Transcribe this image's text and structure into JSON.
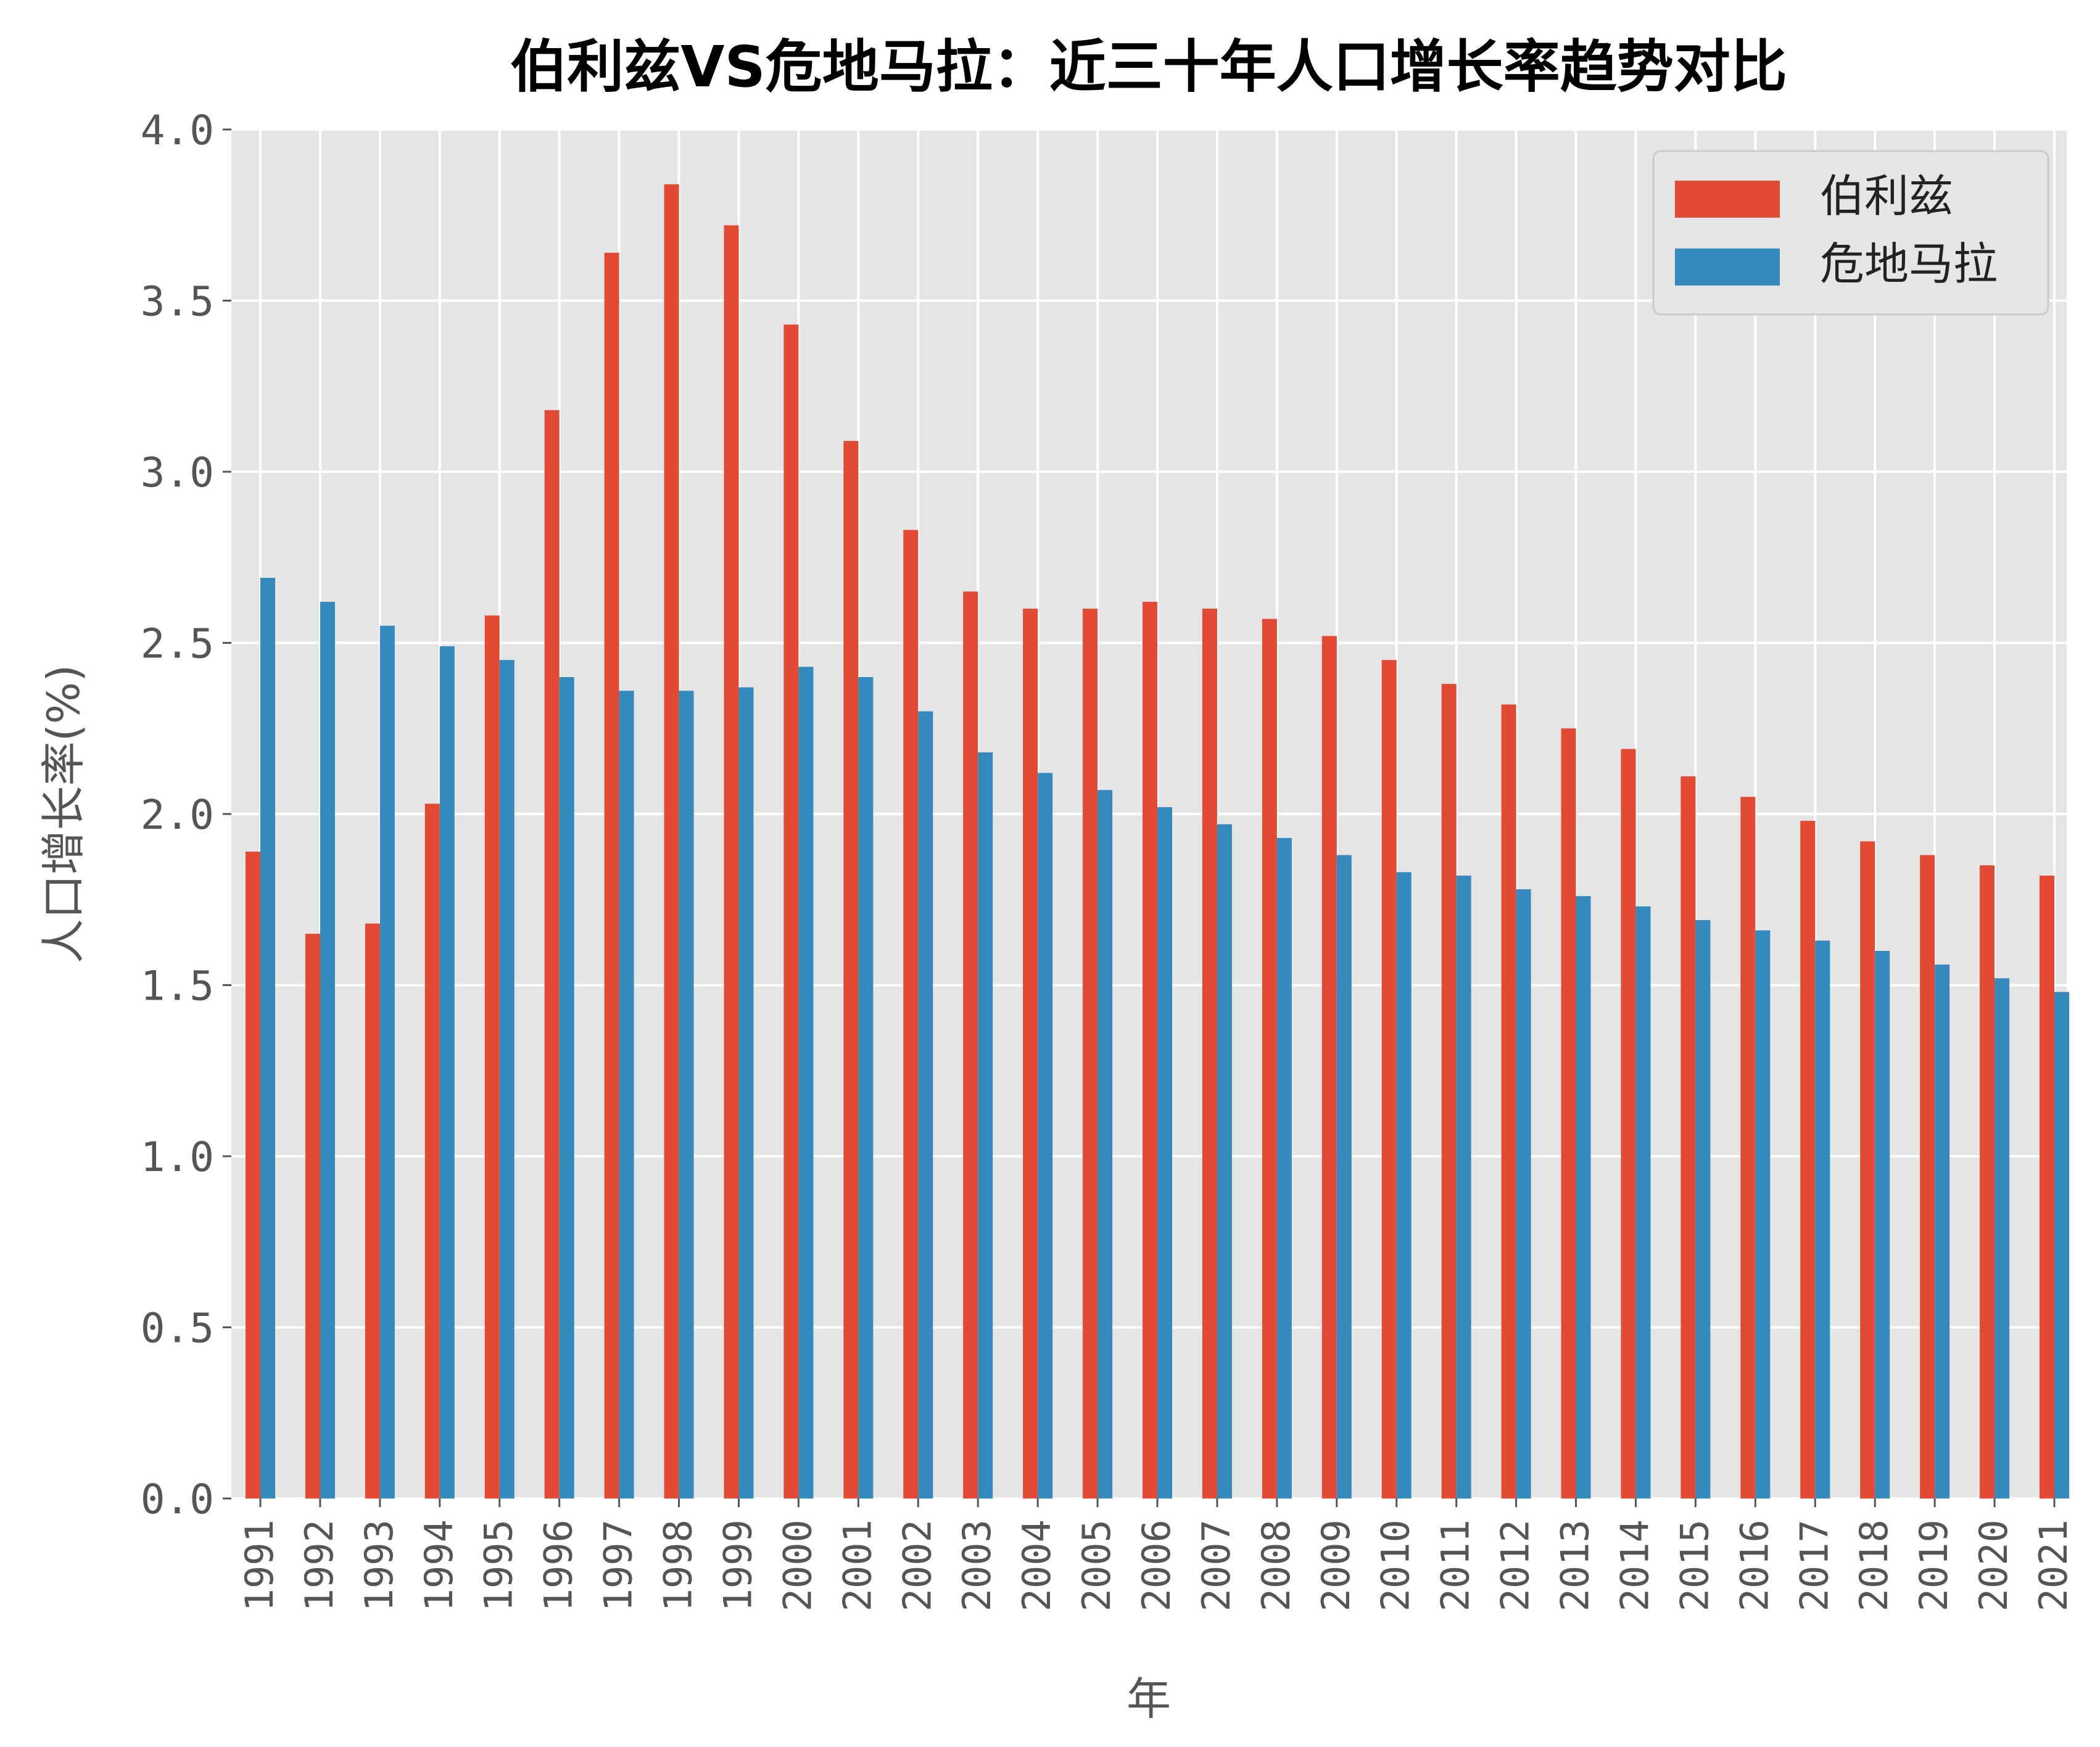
{
  "chart_data": {
    "type": "bar",
    "title": "伯利兹VS危地马拉：近三十年人口增长率趋势对比",
    "xlabel": "年",
    "ylabel": "人口增长率(%)",
    "ylim": [
      0,
      4.0
    ],
    "yticks": [
      "0.0",
      "0.5",
      "1.0",
      "1.5",
      "2.0",
      "2.5",
      "3.0",
      "3.5",
      "4.0"
    ],
    "grid": true,
    "legend_position": "top-right",
    "categories": [
      "1991",
      "1992",
      "1993",
      "1994",
      "1995",
      "1996",
      "1997",
      "1998",
      "1999",
      "2000",
      "2001",
      "2002",
      "2003",
      "2004",
      "2005",
      "2006",
      "2007",
      "2008",
      "2009",
      "2010",
      "2011",
      "2012",
      "2013",
      "2014",
      "2015",
      "2016",
      "2017",
      "2018",
      "2019",
      "2020",
      "2021"
    ],
    "series": [
      {
        "name": "伯利兹",
        "color": "#E24A33",
        "values": [
          1.89,
          1.65,
          1.68,
          2.03,
          2.58,
          3.18,
          3.64,
          3.84,
          3.72,
          3.43,
          3.09,
          2.83,
          2.65,
          2.6,
          2.6,
          2.62,
          2.6,
          2.57,
          2.52,
          2.45,
          2.38,
          2.32,
          2.25,
          2.19,
          2.11,
          2.05,
          1.98,
          1.92,
          1.88,
          1.85,
          1.82
        ]
      },
      {
        "name": "危地马拉",
        "color": "#348ABD",
        "values": [
          2.69,
          2.62,
          2.55,
          2.49,
          2.45,
          2.4,
          2.36,
          2.36,
          2.37,
          2.43,
          2.4,
          2.3,
          2.18,
          2.12,
          2.07,
          2.02,
          1.97,
          1.93,
          1.88,
          1.83,
          1.82,
          1.78,
          1.76,
          1.73,
          1.69,
          1.66,
          1.63,
          1.6,
          1.56,
          1.52,
          1.48
        ]
      }
    ]
  }
}
